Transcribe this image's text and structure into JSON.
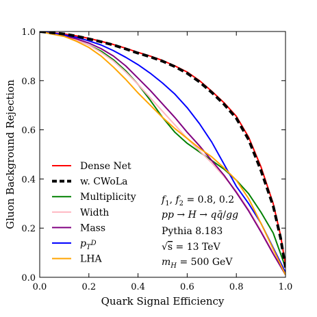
{
  "chart_data": {
    "type": "line",
    "title": "",
    "xlabel": "Quark Signal Efficiency",
    "ylabel": "Gluon Background Rejection",
    "xlim": [
      0.0,
      1.0
    ],
    "ylim": [
      0.0,
      1.0
    ],
    "xticks": [
      0.0,
      0.2,
      0.4,
      0.6,
      0.8,
      1.0
    ],
    "yticks": [
      0.0,
      0.2,
      0.4,
      0.6,
      0.8,
      1.0
    ],
    "xtick_labels": [
      "0.0",
      "0.2",
      "0.4",
      "0.6",
      "0.8",
      "1.0"
    ],
    "ytick_labels": [
      "0.0",
      "0.2",
      "0.4",
      "0.6",
      "0.8",
      "1.0"
    ],
    "grid": false,
    "legend_position": "lower-left",
    "series": [
      {
        "name": "Dense Net",
        "color": "#ff0000",
        "style": "solid",
        "x": [
          0,
          0.05,
          0.1,
          0.15,
          0.2,
          0.25,
          0.3,
          0.35,
          0.4,
          0.45,
          0.5,
          0.55,
          0.6,
          0.65,
          0.7,
          0.75,
          0.8,
          0.85,
          0.9,
          0.95,
          0.98,
          1.0
        ],
        "y": [
          1.0,
          0.995,
          0.99,
          0.982,
          0.972,
          0.96,
          0.947,
          0.932,
          0.915,
          0.9,
          0.882,
          0.86,
          0.835,
          0.8,
          0.757,
          0.71,
          0.655,
          0.57,
          0.45,
          0.3,
          0.17,
          0.05
        ]
      },
      {
        "name": "w. CWoLa",
        "color": "#000000",
        "style": "dashed",
        "x": [
          0,
          0.05,
          0.1,
          0.15,
          0.2,
          0.25,
          0.3,
          0.35,
          0.4,
          0.45,
          0.5,
          0.55,
          0.6,
          0.65,
          0.7,
          0.75,
          0.8,
          0.85,
          0.9,
          0.95,
          0.98,
          1.0
        ],
        "y": [
          1.0,
          0.995,
          0.99,
          0.981,
          0.97,
          0.958,
          0.945,
          0.929,
          0.912,
          0.897,
          0.879,
          0.857,
          0.83,
          0.795,
          0.752,
          0.704,
          0.647,
          0.56,
          0.435,
          0.29,
          0.16,
          0.04
        ]
      },
      {
        "name": "Multiplicity",
        "color": "#008000",
        "style": "solid",
        "x": [
          0,
          0.05,
          0.1,
          0.15,
          0.2,
          0.25,
          0.3,
          0.35,
          0.4,
          0.45,
          0.5,
          0.55,
          0.6,
          0.65,
          0.7,
          0.75,
          0.8,
          0.85,
          0.9,
          0.95,
          1.0
        ],
        "y": [
          1.0,
          0.99,
          0.98,
          0.965,
          0.945,
          0.92,
          0.885,
          0.84,
          0.785,
          0.72,
          0.65,
          0.59,
          0.545,
          0.51,
          0.475,
          0.44,
          0.395,
          0.34,
          0.265,
          0.18,
          0.04
        ]
      },
      {
        "name": "Width",
        "color": "#ffb6c1",
        "style": "solid",
        "x": [
          0,
          0.05,
          0.1,
          0.15,
          0.2,
          0.25,
          0.3,
          0.35,
          0.4,
          0.45,
          0.5,
          0.55,
          0.6,
          0.65,
          0.7,
          0.75,
          0.8,
          0.85,
          0.9,
          0.95,
          1.0
        ],
        "y": [
          1.0,
          0.99,
          0.98,
          0.965,
          0.945,
          0.915,
          0.88,
          0.835,
          0.785,
          0.73,
          0.675,
          0.62,
          0.565,
          0.515,
          0.465,
          0.41,
          0.35,
          0.275,
          0.19,
          0.1,
          0.01
        ]
      },
      {
        "name": "Mass",
        "color": "#800080",
        "style": "solid",
        "x": [
          0,
          0.05,
          0.1,
          0.15,
          0.2,
          0.25,
          0.3,
          0.35,
          0.4,
          0.45,
          0.5,
          0.55,
          0.6,
          0.65,
          0.7,
          0.75,
          0.8,
          0.85,
          0.9,
          0.95,
          1.0
        ],
        "y": [
          1.0,
          0.992,
          0.983,
          0.97,
          0.953,
          0.93,
          0.9,
          0.86,
          0.81,
          0.76,
          0.705,
          0.65,
          0.59,
          0.535,
          0.475,
          0.415,
          0.345,
          0.27,
          0.185,
          0.095,
          0.01
        ]
      },
      {
        "name": "$p_T^D$",
        "color": "#0000ff",
        "style": "solid",
        "x": [
          0,
          0.05,
          0.1,
          0.15,
          0.2,
          0.25,
          0.3,
          0.35,
          0.4,
          0.45,
          0.5,
          0.55,
          0.6,
          0.65,
          0.7,
          0.75,
          0.8,
          0.85,
          0.9,
          0.95,
          1.0
        ],
        "y": [
          1.0,
          0.994,
          0.986,
          0.976,
          0.962,
          0.945,
          0.922,
          0.895,
          0.865,
          0.83,
          0.79,
          0.745,
          0.69,
          0.625,
          0.55,
          0.46,
          0.37,
          0.3,
          0.22,
          0.12,
          0.02
        ]
      },
      {
        "name": "LHA",
        "color": "#ffa500",
        "style": "solid",
        "x": [
          0,
          0.05,
          0.1,
          0.15,
          0.2,
          0.25,
          0.3,
          0.35,
          0.4,
          0.45,
          0.5,
          0.55,
          0.6,
          0.65,
          0.7,
          0.75,
          0.8,
          0.85,
          0.9,
          0.95,
          1.0
        ],
        "y": [
          1.0,
          0.99,
          0.98,
          0.96,
          0.935,
          0.9,
          0.855,
          0.805,
          0.75,
          0.7,
          0.65,
          0.605,
          0.565,
          0.525,
          0.49,
          0.445,
          0.395,
          0.32,
          0.22,
          0.115,
          0.01
        ]
      }
    ],
    "annotations": [
      {
        "type": "math",
        "label": "f1-f2",
        "text": "$f_1, f_2 = 0.8, 0.2$"
      },
      {
        "type": "math",
        "label": "process",
        "text": "$pp \\to H \\to q\\bar{q}/gg$"
      },
      {
        "type": "text",
        "label": "pythia",
        "text": "Pythia 8.183"
      },
      {
        "type": "math",
        "label": "sqrt-s",
        "text": "$\\sqrt{s} = 13$ TeV"
      },
      {
        "type": "math",
        "label": "mass-h",
        "text": "$m_H = 500$ GeV"
      }
    ]
  }
}
